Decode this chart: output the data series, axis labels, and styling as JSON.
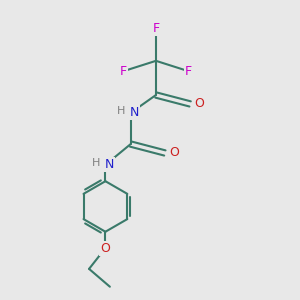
{
  "bg_color": "#e8e8e8",
  "atom_colors": {
    "C": "#3a7a6a",
    "N": "#2020cc",
    "O": "#cc2020",
    "F": "#cc00cc",
    "H": "#808080"
  },
  "bond_color": "#3a7a6a",
  "figsize": [
    3.0,
    3.0
  ],
  "dpi": 100,
  "xlim": [
    0,
    10
  ],
  "ylim": [
    0,
    10
  ]
}
